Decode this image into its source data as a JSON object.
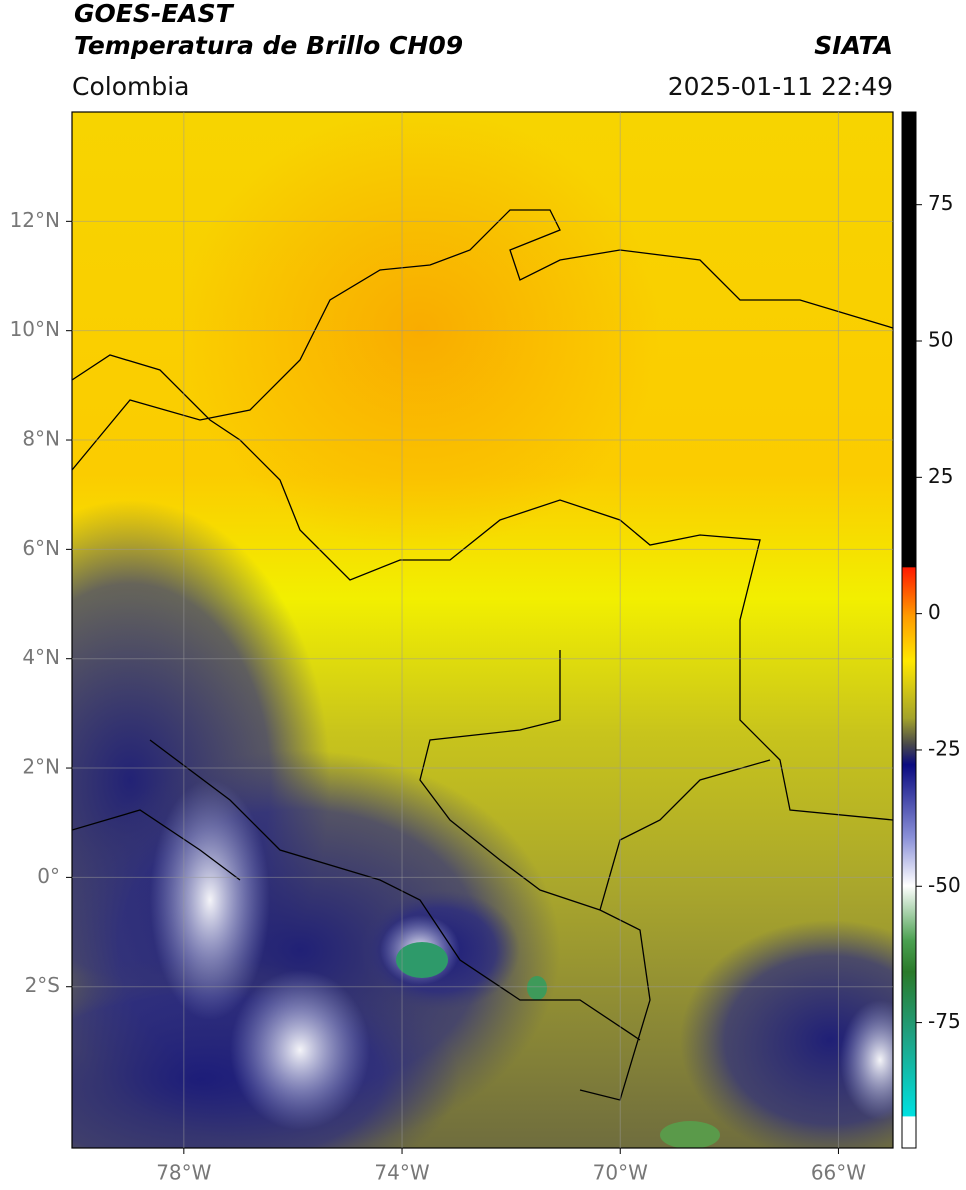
{
  "header": {
    "title": "GOES-EAST",
    "subtitle": "Temperatura de Brillo CH09",
    "brand": "SIATA",
    "region": "Colombia",
    "timestamp": "2025-01-11 22:49"
  },
  "map": {
    "xlim": [
      -80.05,
      -65
    ],
    "ylim": [
      -4.95,
      14
    ],
    "xticks": [
      {
        "value": -78,
        "label": "78°W"
      },
      {
        "value": -74,
        "label": "74°W"
      },
      {
        "value": -70,
        "label": "70°W"
      },
      {
        "value": -66,
        "label": "66°W"
      }
    ],
    "yticks": [
      {
        "value": 12,
        "label": "12°N"
      },
      {
        "value": 10,
        "label": "10°N"
      },
      {
        "value": 8,
        "label": "8°N"
      },
      {
        "value": 6,
        "label": "6°N"
      },
      {
        "value": 4,
        "label": "4°N"
      },
      {
        "value": 2,
        "label": "2°N"
      },
      {
        "value": 0,
        "label": "0°"
      },
      {
        "value": -2,
        "label": "2°S"
      }
    ],
    "grid": true
  },
  "colorbar": {
    "lim": [
      -98,
      92
    ],
    "ticks": [
      75,
      50,
      25,
      0,
      -25,
      -50,
      -75
    ]
  }
}
